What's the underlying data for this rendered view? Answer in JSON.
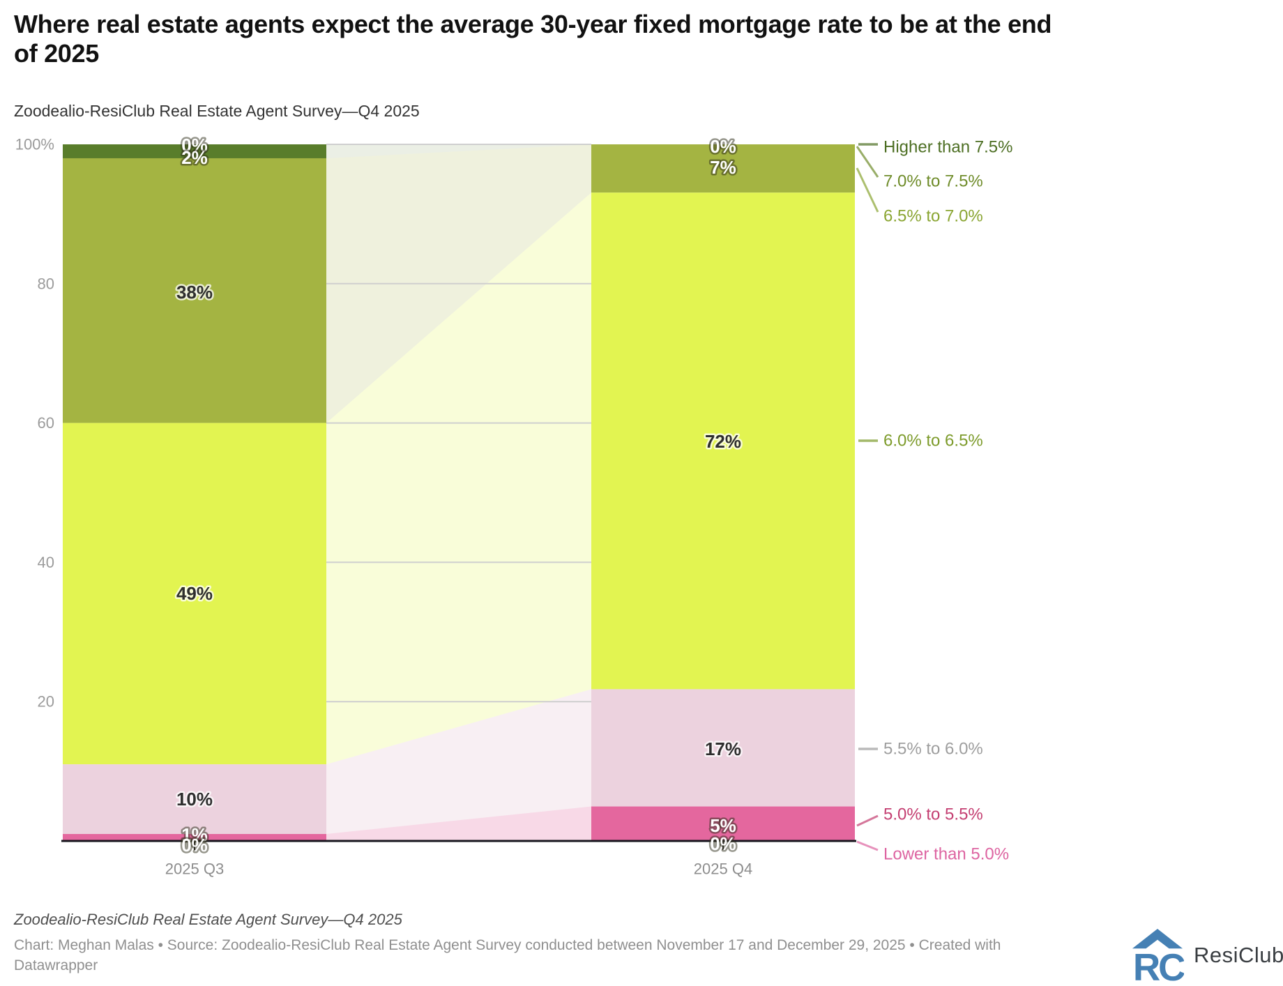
{
  "header": {
    "title_line1": "Where real estate agents expect the average 30-year fixed mortgage rate to be at the end",
    "title_line2": "of 2025",
    "subtitle": "Zoodealio-ResiClub Real Estate Agent Survey—Q4 2025"
  },
  "chart_data": {
    "type": "bar",
    "variant": "stacked-column-with-flow",
    "title": "Where real estate agents expect the average 30-year fixed mortgage rate to be at the end of 2025",
    "subtitle": "Zoodealio-ResiClub Real Estate Agent Survey—Q4 2025",
    "categories": [
      "2025 Q3",
      "2025 Q4"
    ],
    "unit": "%",
    "ylim": [
      0,
      100
    ],
    "y_axis_ticks": [
      "100%",
      "80",
      "60",
      "40",
      "20"
    ],
    "y_axis_tick_values": [
      100,
      80,
      60,
      40,
      20
    ],
    "grid": true,
    "legend_position": "right",
    "series": [
      {
        "name": "Higher than 7.5%",
        "values": [
          0,
          0
        ],
        "labels": [
          "0%",
          "0%"
        ],
        "color": "#466018",
        "flow_color": "rgba(70,96,24,0.10)",
        "legend_color": "#4c6e22"
      },
      {
        "name": "7.0% to 7.5%",
        "values": [
          2,
          0
        ],
        "labels": [
          "2%",
          null
        ],
        "color": "#597d2b",
        "flow_color": "rgba(89,125,43,0.12)",
        "legend_color": "#6f8c2a"
      },
      {
        "name": "6.5% to 7.0%",
        "values": [
          38,
          7
        ],
        "labels": [
          "38%",
          "7%"
        ],
        "color": "#a4b442",
        "flow_color": "rgba(164,180,66,0.18)",
        "legend_color": "#8aa532"
      },
      {
        "name": "6.0% to 6.5%",
        "values": [
          49,
          72
        ],
        "labels": [
          "49%",
          "72%"
        ],
        "color": "#e2f451",
        "flow_color": "rgba(226,244,81,0.22)",
        "legend_color": "#7d9b2b"
      },
      {
        "name": "5.5% to 6.0%",
        "values": [
          10,
          17
        ],
        "labels": [
          "10%",
          "17%"
        ],
        "color": "#ecd2de",
        "flow_color": "rgba(236,210,222,0.35)",
        "legend_color": "#9e9e9e"
      },
      {
        "name": "5.0% to 5.5%",
        "values": [
          1,
          5
        ],
        "labels": [
          "1%",
          "5%"
        ],
        "color": "#e4679e",
        "flow_color": "rgba(228,103,158,0.25)",
        "legend_color": "#c43e71"
      },
      {
        "name": "Lower than 5.0%",
        "values": [
          0,
          0
        ],
        "labels": [
          "0%",
          "0%"
        ],
        "color": "#d6447f",
        "flow_color": "rgba(214,68,127,0.20)",
        "legend_color": "#dd64a1"
      }
    ],
    "axis_color": "#16161d",
    "gridline_color": "#cfcfcf"
  },
  "footer": {
    "note": "Zoodealio-ResiClub Real Estate Agent Survey—Q4 2025",
    "credits_line1": "Chart: Meghan Malas • Source: Zoodealio-ResiClub Real Estate Agent Survey conducted between November 17 and December 29, 2025 • Created with",
    "credits_line2": "Datawrapper"
  },
  "logo": {
    "text": "ResiClub",
    "color": "#4580b4"
  }
}
